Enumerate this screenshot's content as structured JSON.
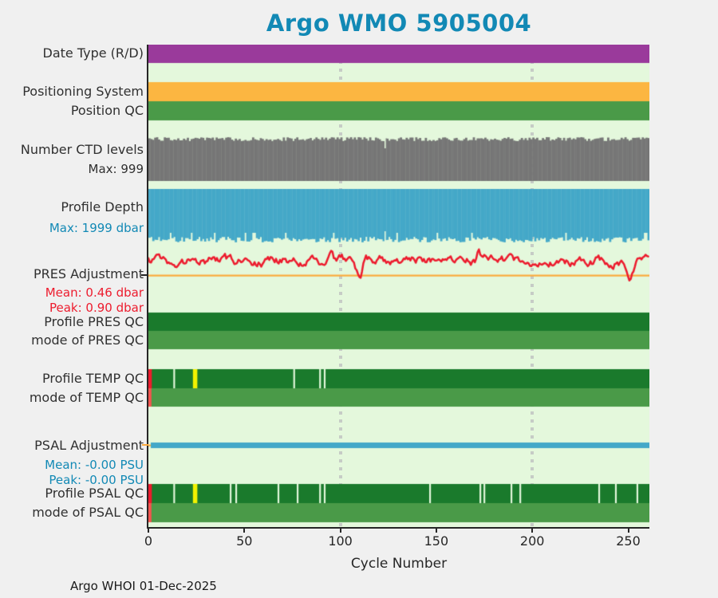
{
  "title": "Argo WMO 5905004",
  "footer": "Argo WHOI 01-Dec-2025",
  "colors": {
    "title_text": "#1289b5",
    "dark_text": "#303030",
    "blue_text": "#1289b5",
    "red_text": "#ed1c2e",
    "figure_bg": "#f0f0f0",
    "plot_bg": "#e4f8dc",
    "grid": "#c6ccc6",
    "axis": "#262626",
    "purple": "#9a3a9b",
    "orange": "#fcb641",
    "green_mid": "#4a9a48",
    "gray": "#767676",
    "blue_bar": "#44a8c8",
    "red_line": "#ec1b2d",
    "zero_line": "#fbaa3c",
    "green_dark": "#1a7a2c",
    "yellow": "#f2f200",
    "red_seg": "#ed1b2d",
    "salmon": "#f4554e",
    "gap": "#e4f8dc"
  },
  "chart_data": {
    "type": "status-timeline",
    "description": "Argo float QC summary: stacked horizontal status/timeline rows vs cycle number",
    "title": "Argo WMO 5905004",
    "xlabel": "Cycle Number",
    "x_range": [
      0,
      261
    ],
    "x_ticks": [
      0,
      50,
      100,
      150,
      200,
      250
    ],
    "gridlines_x": [
      100,
      200
    ],
    "grid_style": "dashed-vertical",
    "legend": "none",
    "rows": [
      {
        "id": "date_type",
        "label": "Date Type (R/D)",
        "kind": "solid",
        "color_key": "purple"
      },
      {
        "id": "positioning_system",
        "label": "Positioning System",
        "kind": "solid",
        "color_key": "orange"
      },
      {
        "id": "position_qc",
        "label": "Position QC",
        "kind": "solid",
        "color_key": "green_mid"
      },
      {
        "id": "n_ctd_levels",
        "label": "Number CTD levels",
        "sublabel": "Max: 999",
        "max_value": 999,
        "kind": "bars_jagged_top",
        "color_key": "gray",
        "notch_cycles": [
          123
        ]
      },
      {
        "id": "profile_depth",
        "label": "Profile Depth",
        "sublabel": "Max: 1999 dbar",
        "max_value_dbar": 1999,
        "kind": "bars_jagged_bottom",
        "color_key": "blue_bar",
        "notch_cycles": [
          123
        ]
      },
      {
        "id": "pres_adjustment",
        "label": "PRES Adjustment",
        "sublabel": "Mean: 0.46 dbar",
        "sublabel2": "Peak: 0.90 dbar",
        "mean_dbar": 0.46,
        "peak_dbar": 0.9,
        "kind": "noisy_line",
        "color_key": "red_line",
        "dip_cycles": [
          110,
          251
        ],
        "spike_cycles": [
          95,
          172
        ]
      },
      {
        "id": "profile_pres_qc",
        "label": "Profile PRES QC",
        "kind": "qc",
        "color_key": "green_dark",
        "segments": []
      },
      {
        "id": "mode_pres_qc",
        "label": "mode of PRES QC",
        "kind": "qc",
        "color_key": "green_mid",
        "segments": []
      },
      {
        "id": "profile_temp_qc",
        "label": "Profile TEMP QC",
        "kind": "qc",
        "color_key": "green_dark",
        "segments": [
          {
            "c": 0,
            "w": 1.8,
            "k": "red_seg"
          },
          {
            "c": 13,
            "w": 0.9,
            "k": "gap"
          },
          {
            "c": 23.2,
            "w": 2.3,
            "k": "yellow"
          },
          {
            "c": 75.5,
            "w": 0.9,
            "k": "gap"
          },
          {
            "c": 89,
            "w": 0.9,
            "k": "gap"
          },
          {
            "c": 91.4,
            "w": 0.9,
            "k": "gap"
          }
        ]
      },
      {
        "id": "mode_temp_qc",
        "label": "mode of TEMP QC",
        "kind": "qc",
        "color_key": "green_mid",
        "segments": [
          {
            "c": 0,
            "w": 1.6,
            "k": "salmon"
          }
        ]
      },
      {
        "id": "psal_adjustment",
        "label": "PSAL Adjustment",
        "sublabel": "Mean: -0.00 PSU",
        "sublabel2": "Peak: -0.00 PSU",
        "mean_psu": -0.0,
        "peak_psu": -0.0,
        "kind": "flat_line",
        "color_key": "blue_bar"
      },
      {
        "id": "profile_psal_qc",
        "label": "Profile PSAL QC",
        "kind": "qc",
        "color_key": "green_dark",
        "segments": [
          {
            "c": 0,
            "w": 1.8,
            "k": "red_seg"
          },
          {
            "c": 13,
            "w": 0.9,
            "k": "gap"
          },
          {
            "c": 23.2,
            "w": 2.3,
            "k": "yellow"
          },
          {
            "c": 42.4,
            "w": 0.9,
            "k": "gap"
          },
          {
            "c": 45.3,
            "w": 0.9,
            "k": "gap"
          },
          {
            "c": 67.3,
            "w": 0.9,
            "k": "gap"
          },
          {
            "c": 77.3,
            "w": 0.9,
            "k": "gap"
          },
          {
            "c": 89,
            "w": 0.9,
            "k": "gap"
          },
          {
            "c": 91.4,
            "w": 0.9,
            "k": "gap"
          },
          {
            "c": 146.3,
            "w": 0.9,
            "k": "gap"
          },
          {
            "c": 172.5,
            "w": 0.9,
            "k": "gap"
          },
          {
            "c": 174.6,
            "w": 0.9,
            "k": "gap"
          },
          {
            "c": 188.7,
            "w": 0.9,
            "k": "gap"
          },
          {
            "c": 193.3,
            "w": 0.9,
            "k": "gap"
          },
          {
            "c": 234.4,
            "w": 0.9,
            "k": "gap"
          },
          {
            "c": 243.1,
            "w": 0.9,
            "k": "gap"
          },
          {
            "c": 254.3,
            "w": 0.9,
            "k": "gap"
          }
        ]
      },
      {
        "id": "mode_psal_qc",
        "label": "mode of PSAL QC",
        "kind": "qc",
        "color_key": "green_mid",
        "segments": [
          {
            "c": 0,
            "w": 1.6,
            "k": "salmon"
          }
        ]
      }
    ]
  }
}
